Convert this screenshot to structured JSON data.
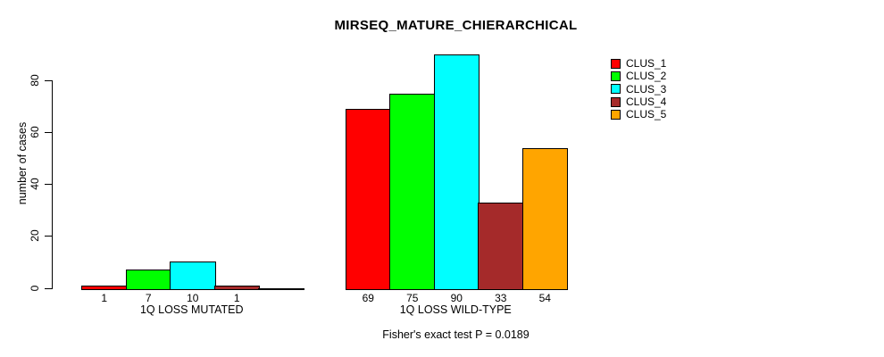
{
  "title": "MIRSEQ_MATURE_CHIERARCHICAL",
  "caption": "Fisher's exact test P = 0.0189",
  "y_axis": {
    "label": "number of cases",
    "tick_labels": [
      "0",
      "20",
      "40",
      "60",
      "80"
    ]
  },
  "legend": {
    "entries": [
      "CLUS_1",
      "CLUS_2",
      "CLUS_3",
      "CLUS_4",
      "CLUS_5"
    ]
  },
  "chart_data": {
    "type": "bar",
    "title": "MIRSEQ_MATURE_CHIERARCHICAL",
    "xlabel": "",
    "ylabel": "number of cases",
    "categories": [
      "1Q LOSS MUTATED",
      "1Q LOSS WILD-TYPE"
    ],
    "series": [
      {
        "name": "CLUS_1",
        "color": "#FF0000",
        "values": [
          1,
          69
        ]
      },
      {
        "name": "CLUS_2",
        "color": "#00FF00",
        "values": [
          7,
          75
        ]
      },
      {
        "name": "CLUS_3",
        "color": "#00FFFF",
        "values": [
          10,
          90
        ]
      },
      {
        "name": "CLUS_4",
        "color": "#A52A2A",
        "values": [
          1,
          33
        ]
      },
      {
        "name": "CLUS_5",
        "color": "#FFA500",
        "values": [
          0,
          54
        ]
      }
    ],
    "bar_value_labels_shown": true,
    "zero_value_labels_hidden": true,
    "ylim": [
      0,
      90
    ],
    "yticks": [
      0,
      20,
      40,
      60,
      80
    ],
    "grid": false,
    "legend_position": "top-right",
    "annotation": "Fisher's exact test P = 0.0189",
    "axis_color": "#000000",
    "background_color": "#FFFFFF"
  }
}
